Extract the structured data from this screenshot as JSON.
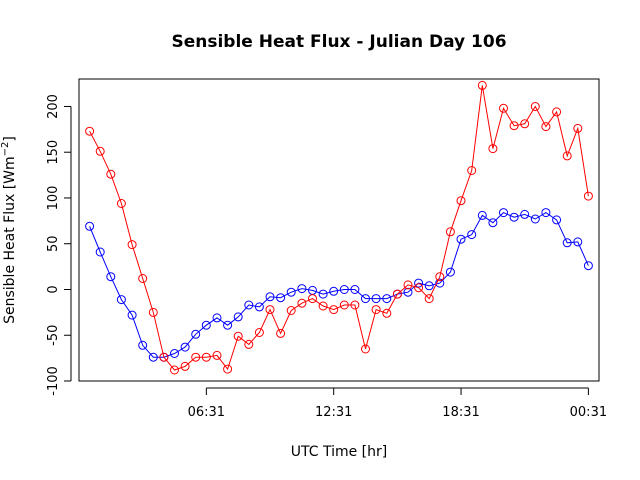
{
  "chart_data": {
    "type": "line",
    "title": "Sensible Heat Flux - Julian Day 106",
    "xlabel": "UTC Time [hr]",
    "ylabel": "Sensible Heat Flux [Wm",
    "ylabel_sup": "−2",
    "ylabel_end": "]",
    "xlim": [
      0,
      49
    ],
    "ylim": [
      -100,
      230
    ],
    "x_ticks": [
      {
        "at": 12.0,
        "label": "06:31"
      },
      {
        "at": 24.0,
        "label": "12:31"
      },
      {
        "at": 36.0,
        "label": "18:31"
      },
      {
        "at": 48.0,
        "label": "00:31"
      }
    ],
    "y_ticks": [
      -100,
      -50,
      0,
      50,
      100,
      150,
      200
    ],
    "grid": false,
    "marker": "open-circle",
    "series": [
      {
        "color": "#0000ff",
        "x": [
          1,
          2,
          3,
          4,
          5,
          6,
          7,
          8,
          9,
          10,
          11,
          12,
          13,
          14,
          15,
          16,
          17,
          18,
          19,
          20,
          21,
          22,
          23,
          24,
          25,
          26,
          27,
          28,
          29,
          30,
          31,
          32,
          33,
          34,
          35,
          36,
          37,
          38,
          39,
          40,
          41,
          42,
          43,
          44,
          45,
          46,
          47,
          48
        ],
        "y": [
          69,
          41,
          14,
          -11,
          -28,
          -61,
          -74,
          -74,
          -70,
          -63,
          -49,
          -39,
          -31,
          -39,
          -30,
          -17,
          -19,
          -8,
          -9,
          -3,
          1,
          -1,
          -5,
          -2,
          0,
          0,
          -10,
          -10,
          -10,
          -5,
          -3,
          7,
          4,
          7,
          19,
          55,
          60,
          81,
          73,
          84,
          79,
          82,
          77,
          84,
          76,
          51,
          52,
          26
        ]
      },
      {
        "color": "#ff0000",
        "x": [
          1,
          2,
          3,
          4,
          5,
          6,
          7,
          8,
          9,
          10,
          11,
          12,
          13,
          14,
          15,
          16,
          17,
          18,
          19,
          20,
          21,
          22,
          23,
          24,
          25,
          26,
          27,
          28,
          29,
          30,
          31,
          32,
          33,
          34,
          35,
          36,
          37,
          38,
          39,
          40,
          41,
          42,
          43,
          44,
          45,
          46,
          47,
          48
        ],
        "y": [
          173,
          151,
          126,
          94,
          49,
          12,
          -25,
          -74,
          -88,
          -84,
          -74,
          -74,
          -72,
          -87,
          -51,
          -60,
          -47,
          -22,
          -48,
          -23,
          -15,
          -10,
          -18,
          -22,
          -17,
          -17,
          -65,
          -22,
          -26,
          -5,
          5,
          2,
          -10,
          14,
          63,
          97,
          130,
          223,
          154,
          198,
          179,
          181,
          200,
          178,
          194,
          146,
          176,
          102
        ]
      }
    ]
  }
}
